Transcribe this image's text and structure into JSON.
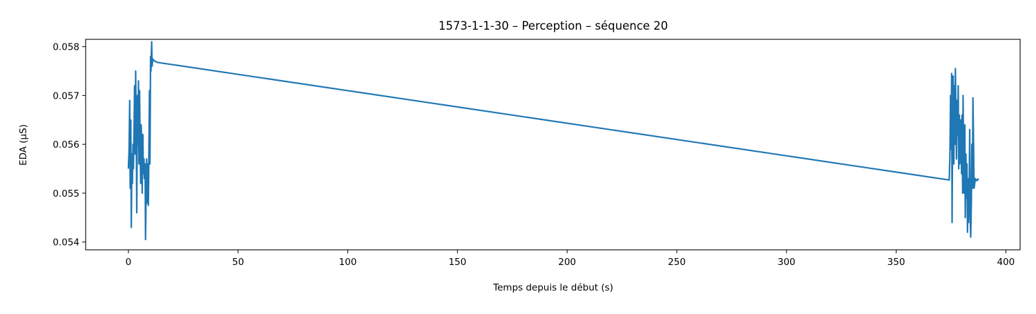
{
  "chart_data": {
    "type": "line",
    "title": "1573-1-1-30 – Perception – séquence 20",
    "xlabel": "Temps depuis le début (s)",
    "ylabel": "EDA (µS)",
    "xlim": [
      -19.5,
      406.5
    ],
    "ylim": [
      0.05384,
      0.05815
    ],
    "xticks": [
      0,
      50,
      100,
      150,
      200,
      250,
      300,
      350,
      400
    ],
    "yticks": [
      0.054,
      0.055,
      0.056,
      0.057,
      0.058
    ],
    "xtick_labels": [
      "0",
      "50",
      "100",
      "150",
      "200",
      "250",
      "300",
      "350",
      "400"
    ],
    "ytick_labels": [
      "0.054",
      "0.055",
      "0.056",
      "0.057",
      "0.058"
    ],
    "grid": false,
    "legend": "none",
    "colors": {
      "series": "#1f77b4"
    },
    "series": [
      {
        "x": [
          0.0,
          0.3,
          0.6,
          0.8,
          1.1,
          1.3,
          1.6,
          1.8,
          2.1,
          2.3,
          2.6,
          2.8,
          3.1,
          3.3,
          3.6,
          3.8,
          4.1,
          4.3,
          4.6,
          4.8,
          5.1,
          5.3,
          5.6,
          5.8,
          6.1,
          6.3,
          6.6,
          6.8,
          7.1,
          7.3,
          7.6,
          7.8,
          8.1,
          8.3,
          8.6,
          8.8,
          9.1,
          9.3,
          9.6,
          9.8,
          10.1,
          10.3,
          10.6,
          10.8,
          11.1,
          11.3,
          11.6,
          11.8,
          12.1,
          12.3,
          12.6,
          12.8,
          13.0,
          374.2,
          374.5,
          374.8,
          375.0,
          375.3,
          375.5,
          375.8,
          376.0,
          376.3,
          376.5,
          376.8,
          377.0,
          377.3,
          377.5,
          377.8,
          378.0,
          378.3,
          378.5,
          378.8,
          379.0,
          379.3,
          379.5,
          379.8,
          380.0,
          380.3,
          380.5,
          380.8,
          381.0,
          381.3,
          381.5,
          381.8,
          382.0,
          382.3,
          382.5,
          382.8,
          383.0,
          383.3,
          383.5,
          383.8,
          384.0,
          384.3,
          384.5,
          384.8,
          385.0,
          385.3,
          385.5,
          385.8,
          386.0,
          386.3,
          386.5,
          386.8,
          387.0,
          387.3,
          387.5
        ],
        "y": [
          0.0555,
          0.0559,
          0.0569,
          0.0551,
          0.0565,
          0.0543,
          0.0558,
          0.0552,
          0.056,
          0.0555,
          0.0564,
          0.0572,
          0.0558,
          0.0575,
          0.0561,
          0.0546,
          0.057,
          0.056,
          0.0573,
          0.0556,
          0.0571,
          0.0561,
          0.0552,
          0.0564,
          0.0559,
          0.055,
          0.0562,
          0.0554,
          0.0557,
          0.0553,
          0.0556,
          0.05405,
          0.0551,
          0.0557,
          0.0548,
          0.0556,
          0.05475,
          0.0557,
          0.0571,
          0.0556,
          0.0578,
          0.0575,
          0.0581,
          0.0576,
          0.05775,
          0.05773,
          0.05772,
          0.05771,
          0.0577,
          0.0577,
          0.05769,
          0.05769,
          0.05768,
          0.05527,
          0.0558,
          0.057,
          0.0559,
          0.05745,
          0.0544,
          0.0569,
          0.0574,
          0.0556,
          0.0572,
          0.056,
          0.05755,
          0.0564,
          0.0557,
          0.0569,
          0.0562,
          0.0572,
          0.0555,
          0.0566,
          0.0556,
          0.0565,
          0.0565,
          0.0554,
          0.0566,
          0.055,
          0.057,
          0.0554,
          0.055,
          0.0564,
          0.0545,
          0.0558,
          0.0549,
          0.0556,
          0.0542,
          0.0553,
          0.0544,
          0.055,
          0.0563,
          0.0544,
          0.0541,
          0.0549,
          0.056,
          0.0551,
          0.05695,
          0.0559,
          0.0551,
          0.0552,
          0.0553,
          0.05525,
          0.05528,
          0.05527,
          0.05526,
          0.05529,
          0.05527
        ]
      }
    ]
  }
}
